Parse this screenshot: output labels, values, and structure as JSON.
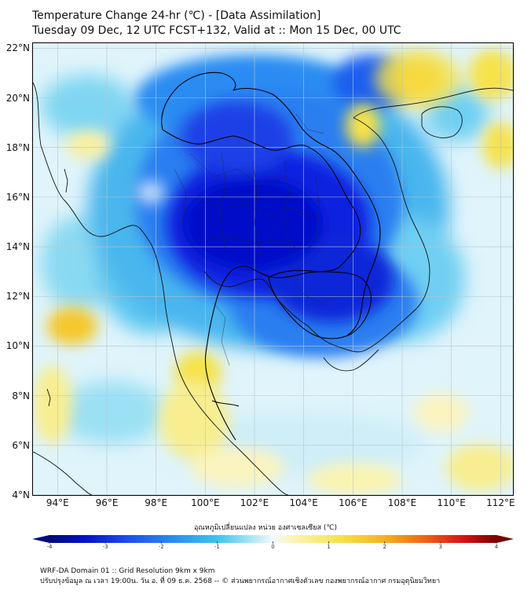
{
  "title": "Temperature Change 24-hr (℃) - [Data Assimilation]",
  "subtitle": "Tuesday 09 Dec, 12 UTC FCST+132, Valid at :: Mon 15 Dec, 00 UTC",
  "map": {
    "lon_range": [
      93,
      112.5
    ],
    "lat_range": [
      4,
      22.2
    ],
    "lat_ticks": [
      {
        "value": 22,
        "label": "22°N"
      },
      {
        "value": 20,
        "label": "20°N"
      },
      {
        "value": 18,
        "label": "18°N"
      },
      {
        "value": 16,
        "label": "16°N"
      },
      {
        "value": 14,
        "label": "14°N"
      },
      {
        "value": 12,
        "label": "12°N"
      },
      {
        "value": 10,
        "label": "10°N"
      },
      {
        "value": 8,
        "label": "8°N"
      },
      {
        "value": 6,
        "label": "6°N"
      },
      {
        "value": 4,
        "label": "4°N"
      }
    ],
    "lon_ticks": [
      {
        "value": 94,
        "label": "94°E"
      },
      {
        "value": 96,
        "label": "96°E"
      },
      {
        "value": 98,
        "label": "98°E"
      },
      {
        "value": 100,
        "label": "100°E"
      },
      {
        "value": 102,
        "label": "102°E"
      },
      {
        "value": 104,
        "label": "104°E"
      },
      {
        "value": 106,
        "label": "106°E"
      },
      {
        "value": 108,
        "label": "108°E"
      },
      {
        "value": 110,
        "label": "110°E"
      },
      {
        "value": 112,
        "label": "112°E"
      }
    ],
    "gridlines": true,
    "colors": {
      "background": "#dff4fb",
      "gridline": "#b8c4cc",
      "coastline": "#111111",
      "border": "#000000"
    }
  },
  "colorbar": {
    "label": "อุณหภูมิเปลี่ยนแปลง หน่วย องศาเซลเซียส (℃)",
    "range": [
      -4,
      4
    ],
    "ticks": [
      {
        "value": -4,
        "label": "-4"
      },
      {
        "value": -3,
        "label": "-3"
      },
      {
        "value": -2,
        "label": "-2"
      },
      {
        "value": -1,
        "label": "-1"
      },
      {
        "value": 0,
        "label": "0"
      },
      {
        "value": 1,
        "label": "1"
      },
      {
        "value": 2,
        "label": "2"
      },
      {
        "value": 3,
        "label": "3"
      },
      {
        "value": 4,
        "label": "4"
      }
    ],
    "extend": "both",
    "color_stops": [
      {
        "value": -4,
        "color": "#000a78"
      },
      {
        "value": -3.4,
        "color": "#0010c8"
      },
      {
        "value": -2.6,
        "color": "#1e4cf0"
      },
      {
        "value": -1.8,
        "color": "#2a8cf2"
      },
      {
        "value": -1.0,
        "color": "#3cc4ee"
      },
      {
        "value": -0.4,
        "color": "#a8e6f6"
      },
      {
        "value": 0,
        "color": "#f4f9fb"
      },
      {
        "value": 0.4,
        "color": "#fbf4b0"
      },
      {
        "value": 1.2,
        "color": "#f6e24a"
      },
      {
        "value": 2.0,
        "color": "#f5b21e"
      },
      {
        "value": 2.8,
        "color": "#ee5a14"
      },
      {
        "value": 3.4,
        "color": "#d91212"
      },
      {
        "value": 4,
        "color": "#7a0000"
      }
    ]
  },
  "footer": {
    "line1": "WRF-DA Domain 01 :: Grid Resolution 9km x 9km",
    "line2": "ปรับปรุงข้อมูล ณ เวลา 19:00น. วัน อ. ที่ 09 ธ.ค. 2568 -- © ส่วนพยากรณ์อากาศเชิงตัวเลข กองพยากรณ์อากาศ กรมอุตุนิยมวิทยา"
  }
}
